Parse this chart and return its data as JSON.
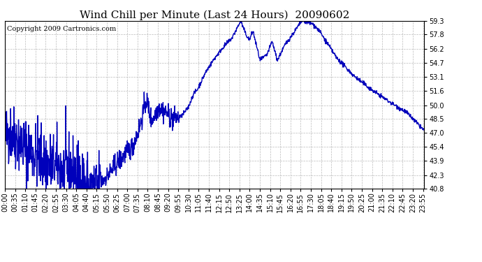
{
  "title": "Wind Chill per Minute (Last 24 Hours)  20090602",
  "copyright": "Copyright 2009 Cartronics.com",
  "line_color": "#0000bb",
  "bg_color": "#ffffff",
  "grid_color": "#bbbbbb",
  "ylim": [
    40.8,
    59.3
  ],
  "yticks": [
    40.8,
    42.3,
    43.9,
    45.4,
    47.0,
    48.5,
    50.0,
    51.6,
    53.1,
    54.7,
    56.2,
    57.8,
    59.3
  ],
  "xtick_labels": [
    "00:00",
    "00:35",
    "01:10",
    "01:45",
    "02:20",
    "02:55",
    "03:30",
    "04:05",
    "04:40",
    "05:15",
    "05:50",
    "06:25",
    "07:00",
    "07:35",
    "08:10",
    "08:45",
    "09:20",
    "09:55",
    "10:30",
    "11:05",
    "11:40",
    "12:15",
    "12:50",
    "13:25",
    "14:00",
    "14:35",
    "15:10",
    "15:45",
    "16:20",
    "16:55",
    "17:30",
    "18:05",
    "18:40",
    "19:15",
    "19:50",
    "20:25",
    "21:00",
    "21:35",
    "22:10",
    "22:45",
    "23:20",
    "23:55"
  ],
  "title_fontsize": 11,
  "copyright_fontsize": 7,
  "tick_fontsize": 7,
  "line_width": 1.0
}
